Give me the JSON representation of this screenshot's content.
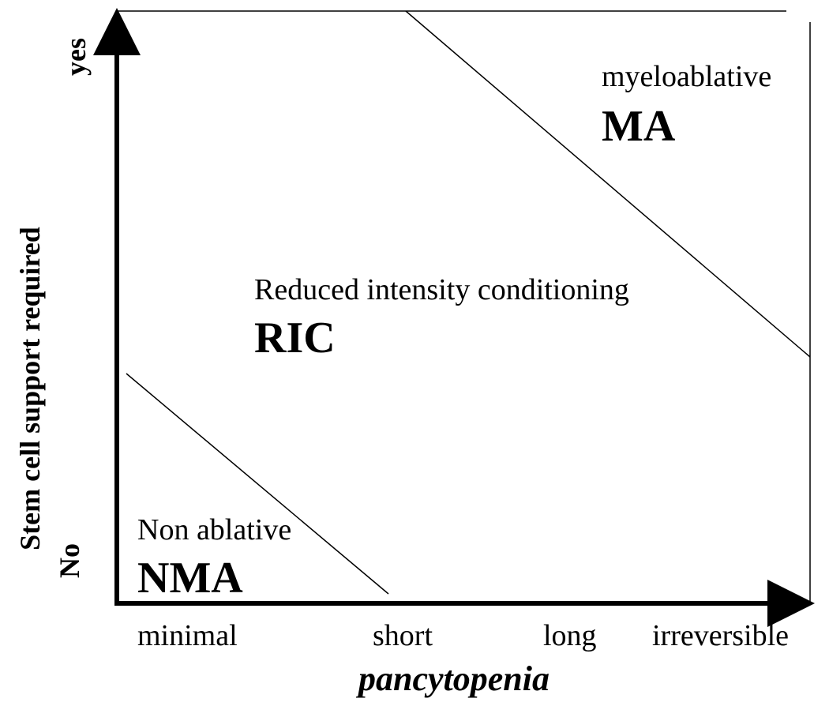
{
  "diagram": {
    "regions": [
      {
        "id": "ma",
        "name": "myeloablative",
        "abbr": "MA"
      },
      {
        "id": "ric",
        "name": "Reduced intensity conditioning",
        "abbr": "RIC"
      },
      {
        "id": "nma",
        "name": "Non ablative",
        "abbr": "NMA"
      }
    ],
    "x_axis": {
      "title": "pancytopenia",
      "ticks": [
        "minimal",
        "short",
        "long",
        "irreversible"
      ]
    },
    "y_axis": {
      "title": "Stem cell support required",
      "low_label": "No",
      "high_label": "yes"
    }
  }
}
